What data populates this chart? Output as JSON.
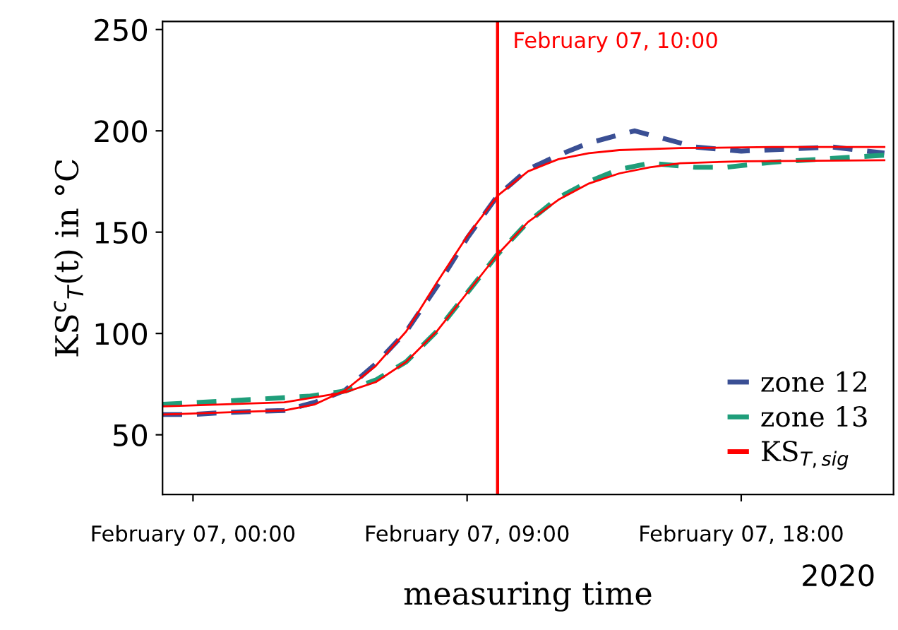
{
  "chart_data": {
    "type": "line",
    "xlabel": "measuring time",
    "ylabel": "KS$^{c}$$_{T}$(t) in °C",
    "xlim": [
      "2020-02-06T23:00",
      "2020-02-07T23:00"
    ],
    "xticks": [
      {
        "value": "2020-02-07T00:00",
        "label": "February 07, 00:00"
      },
      {
        "value": "2020-02-07T09:00",
        "label": "February 07, 09:00"
      },
      {
        "value": "2020-02-07T18:00",
        "label": "February 07, 18:00"
      }
    ],
    "ylim": [
      20.5,
      254
    ],
    "yticks": [
      50,
      100,
      150,
      200,
      250
    ],
    "grid": false,
    "legend": "bottom right",
    "marker": "none",
    "ref_lines": [
      {
        "axis": "x",
        "value": "2020-02-07T10:00",
        "label": "February 07, 10:00",
        "color": "#ff0000",
        "line_style": "solid"
      }
    ],
    "annotations": [
      "2020"
    ],
    "series": [
      {
        "name": "zone 12",
        "color": "#3a4f94",
        "line_style": "dashed",
        "x": [
          "2020-02-06T23:00",
          "2020-02-07T00:00",
          "2020-02-07T01:00",
          "2020-02-07T02:00",
          "2020-02-07T03:00",
          "2020-02-07T04:00",
          "2020-02-07T05:00",
          "2020-02-07T06:00",
          "2020-02-07T07:00",
          "2020-02-07T08:00",
          "2020-02-07T09:00",
          "2020-02-07T10:00",
          "2020-02-07T11:00",
          "2020-02-07T12:00",
          "2020-02-07T13:00",
          "2020-02-07T14:00",
          "2020-02-07T14:30",
          "2020-02-07T15:30",
          "2020-02-07T16:30",
          "2020-02-07T18:00",
          "2020-02-07T19:30",
          "2020-02-07T21:00",
          "2020-02-07T22:42"
        ],
        "values": [
          60,
          60,
          61,
          61.5,
          62,
          66,
          72,
          85,
          101,
          123,
          147,
          168,
          181,
          188,
          194,
          198,
          200,
          196,
          192,
          190,
          191,
          192,
          189
        ]
      },
      {
        "name": "zone 13",
        "color": "#1f9e7a",
        "line_style": "dashed",
        "x": [
          "2020-02-06T23:00",
          "2020-02-07T01:30",
          "2020-02-07T03:48",
          "2020-02-07T05:00",
          "2020-02-07T06:00",
          "2020-02-07T07:00",
          "2020-02-07T08:00",
          "2020-02-07T09:00",
          "2020-02-07T10:00",
          "2020-02-07T11:00",
          "2020-02-07T12:00",
          "2020-02-07T13:00",
          "2020-02-07T14:00",
          "2020-02-07T15:00",
          "2020-02-07T16:30",
          "2020-02-07T17:30",
          "2020-02-07T19:00",
          "2020-02-07T20:36",
          "2020-02-07T22:42"
        ],
        "values": [
          65,
          67,
          69,
          71.6,
          77,
          86,
          101,
          120,
          139,
          155,
          167,
          175,
          181,
          184,
          182,
          182,
          184.5,
          186,
          188
        ]
      },
      {
        "name": "KS$_{T,sig}$",
        "color": "#ff0000",
        "line_style": "solid",
        "x": [
          "2020-02-06T23:00",
          "2020-02-07T03:00",
          "2020-02-07T04:00",
          "2020-02-07T05:00",
          "2020-02-07T06:00",
          "2020-02-07T07:00",
          "2020-02-07T08:00",
          "2020-02-07T09:00",
          "2020-02-07T10:00",
          "2020-02-07T11:00",
          "2020-02-07T12:00",
          "2020-02-07T13:00",
          "2020-02-07T14:00",
          "2020-02-07T16:00",
          "2020-02-07T19:00",
          "2020-02-07T22:42"
        ],
        "values": [
          60,
          62,
          65,
          72,
          84,
          101,
          125,
          148,
          168,
          180,
          186,
          189,
          190.5,
          191.5,
          192,
          192
        ]
      },
      {
        "color": "#ff0000",
        "line_style": "solid",
        "x": [
          "2020-02-06T23:00",
          "2020-02-07T03:00",
          "2020-02-07T05:00",
          "2020-02-07T06:00",
          "2020-02-07T07:00",
          "2020-02-07T08:00",
          "2020-02-07T09:00",
          "2020-02-07T10:00",
          "2020-02-07T11:00",
          "2020-02-07T12:00",
          "2020-02-07T13:00",
          "2020-02-07T14:00",
          "2020-02-07T15:00",
          "2020-02-07T16:00",
          "2020-02-07T18:00",
          "2020-02-07T22:42"
        ],
        "values": [
          64,
          66,
          71,
          76,
          86,
          101,
          120,
          139,
          155,
          166,
          174,
          179,
          182,
          184,
          185,
          185.5
        ]
      }
    ]
  }
}
